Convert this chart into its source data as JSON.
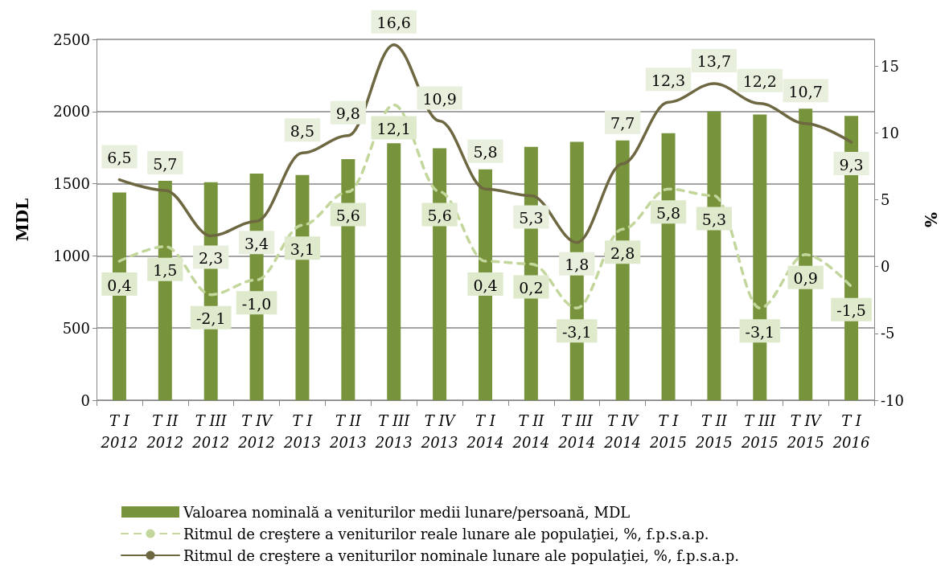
{
  "chart_data": {
    "type": "bar",
    "ylabel": "MDL",
    "y2label": "%",
    "categories": [
      "T I\n2012",
      "T II\n2012",
      "T III\n2012",
      "T IV\n2012",
      "T I\n2013",
      "T II\n2013",
      "T III\n2013",
      "T IV\n2013",
      "T I\n2014",
      "T II\n2014",
      "T III\n2014",
      "T IV\n2014",
      "T I\n2015",
      "T II\n2015",
      "T III\n2015",
      "T IV\n2015",
      "T I\n2016"
    ],
    "series": [
      {
        "name": "Valoarea nominală a veniturilor medii lunare/persoană, MDL",
        "color": "#77933c",
        "values": [
          1440,
          1520,
          1510,
          1570,
          1560,
          1670,
          1780,
          1745,
          1600,
          1755,
          1790,
          1800,
          1850,
          2000,
          1980,
          2020,
          1970
        ]
      },
      {
        "name": "Ritmul de creştere a veniturilor reale lunare ale populaţiei, %, f.p.s.a.p.",
        "type": "line",
        "axis": "y2",
        "line_style": "dashed",
        "color": "#c3d69b",
        "values": [
          0.4,
          1.5,
          -2.1,
          -1.0,
          3.1,
          5.6,
          12.1,
          5.6,
          0.4,
          0.2,
          -3.1,
          2.8,
          5.8,
          5.3,
          -3.1,
          0.9,
          -1.5
        ],
        "value_labels": [
          "0,4",
          "1,5",
          "-2,1",
          "-1,0",
          "3,1",
          "5,6",
          "12,1",
          "5,6",
          "0,4",
          "0,2",
          "-3,1",
          "2,8",
          "5,8",
          "5,3",
          "-3,1",
          "0,9",
          "-1,5"
        ]
      },
      {
        "name": "Ritmul de creştere a veniturilor nominale lunare ale populaţiei, %, f.p.s.a.p.",
        "type": "line",
        "axis": "y2",
        "line_style": "solid",
        "color": "#6d6841",
        "values": [
          6.5,
          5.7,
          2.3,
          3.4,
          8.5,
          9.8,
          16.6,
          10.9,
          5.8,
          5.3,
          1.8,
          7.7,
          12.3,
          13.7,
          12.2,
          10.7,
          9.3
        ],
        "value_labels": [
          "6,5",
          "5,7",
          "2,3",
          "3,4",
          "8,5",
          "9,8",
          "16,6",
          "10,9",
          "5,8",
          "5,3",
          "1,8",
          "7,7",
          "12,3",
          "13,7",
          "12,2",
          "10,7",
          "9,3"
        ]
      }
    ],
    "ylim": [
      0,
      2500
    ],
    "yticks": [
      0,
      500,
      1000,
      1500,
      2000,
      2500
    ],
    "y2lim": [
      -10,
      17
    ],
    "y2ticks": [
      -10,
      -5,
      0,
      5,
      10,
      15
    ],
    "grid": "y",
    "legend": "bottom",
    "marker": "none"
  }
}
